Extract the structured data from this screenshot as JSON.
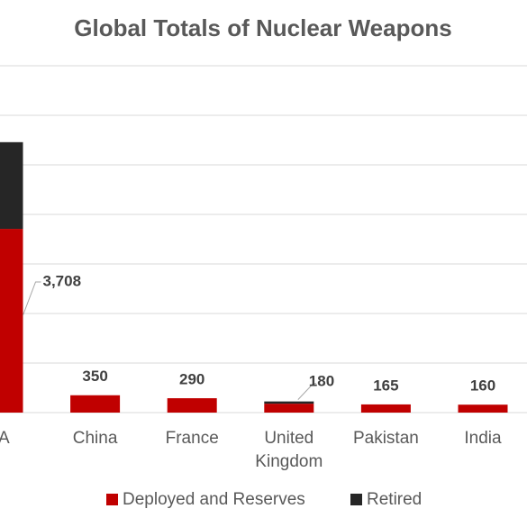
{
  "chart_data": {
    "type": "stacked_bar",
    "title": "Global Totals of Nuclear Weapons",
    "categories": [
      "SA",
      "China",
      "France",
      [
        "United",
        "Kingdom"
      ],
      "Pakistan",
      "India"
    ],
    "series": [
      {
        "name": "Deployed and Reserves",
        "color": "#c00000",
        "values": [
          3708,
          350,
          290,
          180,
          165,
          160
        ],
        "value_labels": [
          "3,708",
          "350",
          "290",
          "180",
          "165",
          "160"
        ]
      },
      {
        "name": "Retired",
        "color": "#262626",
        "values": [
          1750,
          0,
          0,
          45,
          0,
          0
        ]
      }
    ],
    "ylim": [
      0,
      7000
    ],
    "yticks": [
      0,
      1000,
      2000,
      3000,
      4000,
      5000,
      6000,
      7000
    ],
    "grid": true
  }
}
